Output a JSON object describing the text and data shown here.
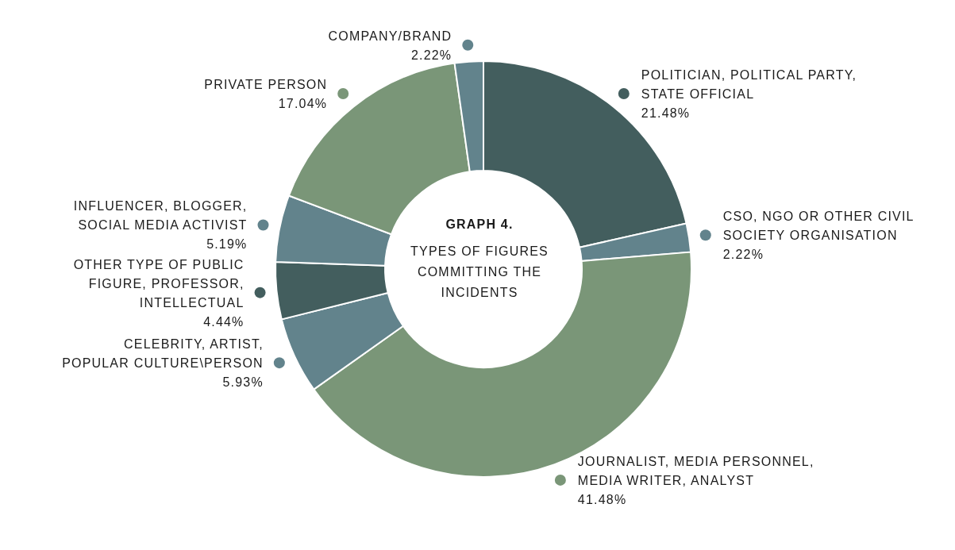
{
  "chart_data": {
    "type": "donut",
    "title": "GRAPH 4.",
    "subtitle": "TYPES OF FIGURES\nCOMMITTING THE\nINCIDENTS",
    "categories": [
      "POLITICIAN, POLITICAL PARTY,\nSTATE OFFICIAL",
      "CSO, NGO OR OTHER CIVIL\nSOCIETY ORGANISATION",
      "JOURNALIST, MEDIA PERSONNEL,\nMEDIA WRITER, ANALYST",
      "CELEBRITY, ARTIST,\nPOPULAR CULTURE\\PERSON",
      "OTHER TYPE OF PUBLIC\nFIGURE, PROFESSOR,\nINTELLECTUAL",
      "INFLUENCER, BLOGGER,\nSOCIAL MEDIA ACTIVIST",
      "PRIVATE PERSON",
      "COMPANY/BRAND"
    ],
    "values": [
      21.48,
      2.22,
      41.48,
      5.93,
      4.44,
      5.19,
      17.04,
      2.22
    ],
    "value_labels": [
      "21.48%",
      "2.22%",
      "41.48%",
      "5.93%",
      "4.44%",
      "5.19%",
      "17.04%",
      "2.22%"
    ],
    "colors": [
      "#435e5e",
      "#62838c",
      "#7a9678",
      "#62838c",
      "#435e5e",
      "#62838c",
      "#7a9678",
      "#62838c"
    ],
    "legend": false
  }
}
